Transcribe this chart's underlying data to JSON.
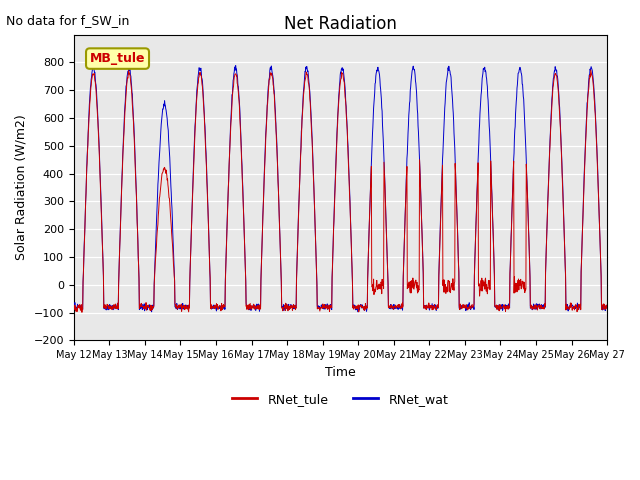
{
  "title": "Net Radiation",
  "subtitle": "No data for f_SW_in",
  "ylabel": "Solar Radiation (W/m2)",
  "xlabel": "Time",
  "ylim": [
    -200,
    900
  ],
  "yticks": [
    -200,
    -100,
    0,
    100,
    200,
    300,
    400,
    500,
    600,
    700,
    800
  ],
  "color_red": "#cc0000",
  "color_blue": "#0000cc",
  "legend_labels": [
    "RNet_tule",
    "RNet_wat"
  ],
  "annotation_box_text": "MB_tule",
  "annotation_box_facecolor": "#ffffaa",
  "annotation_box_edgecolor": "#999900",
  "plot_bg_color": "#e8e8e8",
  "n_days": 15,
  "peak_blue": 780,
  "peak_red": 760,
  "night_value": -80,
  "tick_labels": [
    "May 12",
    "May 13",
    "May 14",
    "May 15",
    "May 16",
    "May 17",
    "May 18",
    "May 19",
    "May 20",
    "May 21",
    "May 22",
    "May 23",
    "May 24",
    "May 25",
    "May 26",
    "May 27"
  ]
}
